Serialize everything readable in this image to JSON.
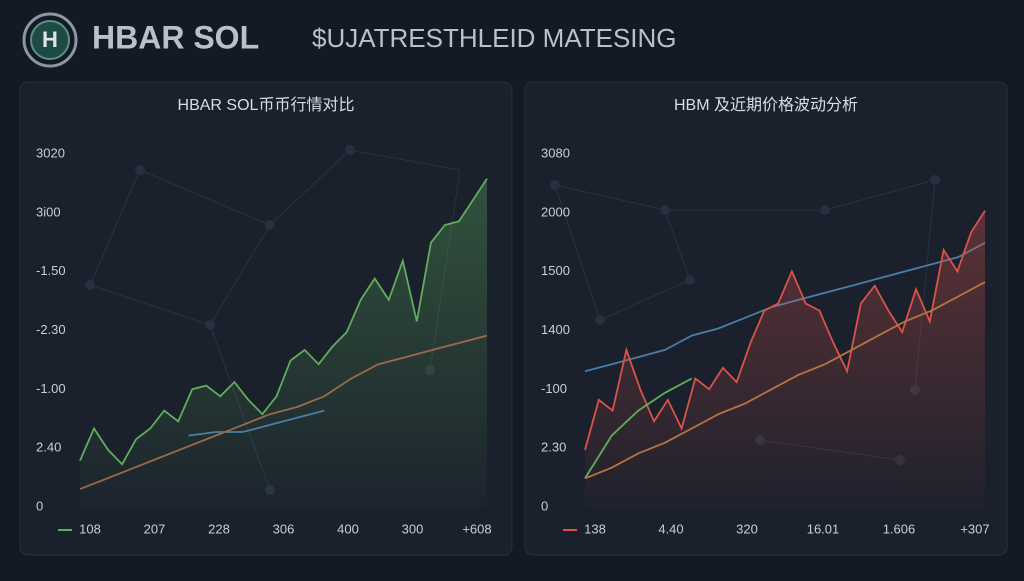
{
  "header": {
    "logo": "H",
    "title": "HBAR SOL",
    "subtitle": "$UJATRESTHLEID MATESING"
  },
  "chart_data": [
    {
      "type": "line",
      "title": "HBAR SOL币币行情对比",
      "ylabels": [
        "3020",
        "3i00",
        "-1.50",
        "-2.30",
        "-1.00",
        "2.40",
        "0"
      ],
      "xlabels": [
        "108",
        "207",
        "228",
        "306",
        "400",
        "300",
        "+608"
      ],
      "legend_color": "#5fae5a",
      "ylim": [
        0,
        100
      ],
      "series": [
        {
          "color": "#5fae5a",
          "area": true,
          "values": [
            13,
            22,
            16,
            12,
            19,
            22,
            27,
            24,
            33,
            34,
            31,
            35,
            30,
            26,
            31,
            41,
            44,
            40,
            45,
            49,
            58,
            64,
            58,
            69,
            52,
            74,
            79,
            80,
            86,
            92
          ]
        },
        {
          "color": "#4a7ea8",
          "values": [
            null,
            null,
            null,
            null,
            20,
            21,
            21,
            23,
            25,
            27,
            null,
            null,
            null,
            null,
            null,
            null
          ]
        },
        {
          "color": "#9a6a4a",
          "values": [
            5,
            8,
            11,
            14,
            17,
            20,
            23,
            26,
            28,
            31,
            36,
            40,
            42,
            44,
            46,
            48
          ]
        }
      ]
    },
    {
      "type": "line",
      "title": "HBM 及近期价格波动分析",
      "ylabels": [
        "3080",
        "2000",
        "1500",
        "1400",
        "-100",
        "2.30",
        "0"
      ],
      "xlabels": [
        "138",
        "4.40",
        "320",
        "16.01",
        "1.606",
        "+307"
      ],
      "legend_color": "#d9534a",
      "ylim": [
        0,
        100
      ],
      "series": [
        {
          "color": "#4a7ea8",
          "values": [
            38,
            40,
            42,
            44,
            48,
            50,
            53,
            56,
            58,
            60,
            62,
            64,
            66,
            68,
            70,
            74
          ]
        },
        {
          "color": "#d9534a",
          "area": true,
          "values": [
            16,
            30,
            27,
            44,
            33,
            24,
            30,
            22,
            36,
            33,
            39,
            35,
            46,
            55,
            57,
            66,
            57,
            55,
            46,
            38,
            57,
            62,
            55,
            49,
            61,
            52,
            72,
            66,
            77,
            83
          ]
        },
        {
          "color": "#5fae5a",
          "values": [
            8,
            20,
            27,
            32,
            36,
            null,
            null,
            null,
            null,
            null,
            null,
            null,
            null,
            null,
            null,
            null
          ]
        },
        {
          "color": "#b8743f",
          "values": [
            8,
            11,
            15,
            18,
            22,
            26,
            29,
            33,
            37,
            40,
            44,
            48,
            52,
            55,
            59,
            63
          ]
        }
      ]
    }
  ]
}
